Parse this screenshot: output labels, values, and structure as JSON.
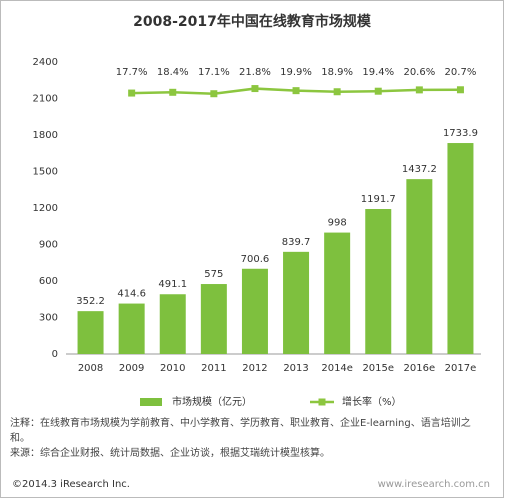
{
  "chart_data": {
    "type": "bar",
    "title": "2008-2017年中国在线教育市场规模",
    "categories": [
      "2008",
      "2009",
      "2010",
      "2011",
      "2012",
      "2013",
      "2014e",
      "2015e",
      "2016e",
      "2017e"
    ],
    "series": [
      {
        "name": "市场规模（亿元）",
        "type": "bar",
        "color": "#7ec03e",
        "values": [
          352.2,
          414.6,
          491.1,
          575.0,
          700.6,
          839.7,
          998.0,
          1191.7,
          1437.2,
          1733.9
        ]
      },
      {
        "name": "增长率（%）",
        "type": "line",
        "axis": "y2",
        "color": "#8cc63f",
        "values": [
          null,
          17.7,
          18.4,
          17.1,
          21.8,
          19.9,
          18.9,
          19.4,
          20.6,
          20.7
        ],
        "value_labels": [
          null,
          "17.7%",
          "18.4%",
          "17.1%",
          "21.8%",
          "19.9%",
          "18.9%",
          "19.4%",
          "20.6%",
          "20.7%"
        ]
      }
    ],
    "ylim": [
      0,
      2400
    ],
    "yticks": [
      0,
      300,
      600,
      900,
      1200,
      1500,
      1800,
      2100,
      2400
    ],
    "y2lim": [
      -220,
      46
    ],
    "notes": [
      "注释：在线教育市场规模为学前教育、中小学教育、学历教育、职业教育、企业E-learning、语言培训之和。",
      "来源：综合企业财报、统计局数据、企业访谈，根据艾瑞统计模型核算。"
    ],
    "copyright": "©2014.3 iResearch Inc.",
    "watermark": "www.iresearch.com.cn"
  }
}
